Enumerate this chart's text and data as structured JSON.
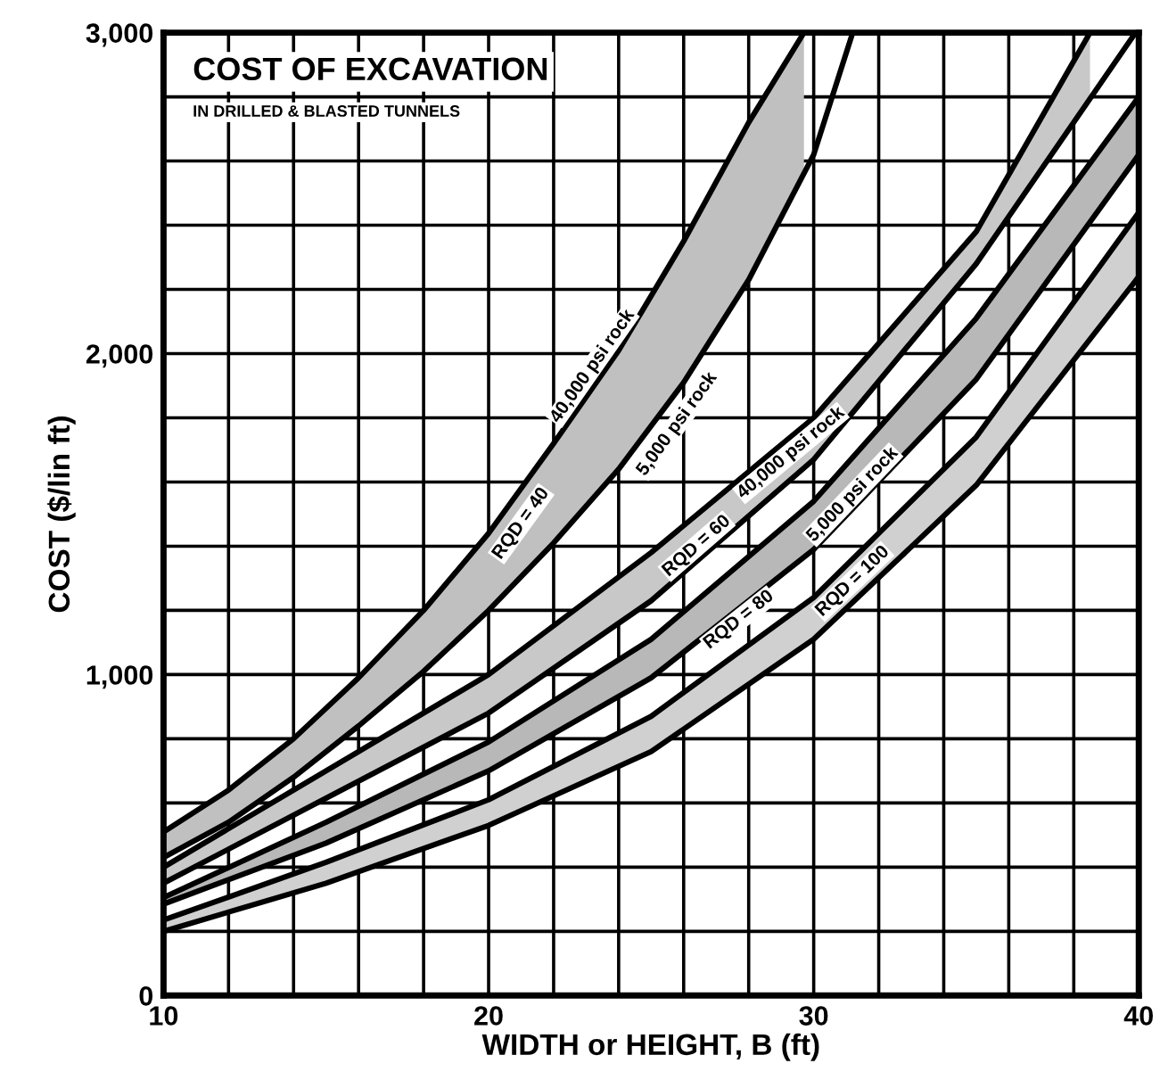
{
  "chart_data": {
    "type": "line",
    "title": "COST OF EXCAVATION",
    "subtitle": "IN DRILLED & BLASTED TUNNELS",
    "xlabel": "WIDTH or HEIGHT, B (ft)",
    "ylabel": "COST ($/lin ft)",
    "xlim": [
      10,
      40
    ],
    "ylim": [
      0,
      3000
    ],
    "xticks": [
      10,
      {
        "value": 12,
        "label": null
      },
      {
        "value": 14,
        "label": null
      },
      {
        "value": 16,
        "label": null
      },
      {
        "value": 18,
        "label": null
      },
      20,
      {
        "value": 22,
        "label": null
      },
      {
        "value": 24,
        "label": null
      },
      {
        "value": 26,
        "label": null
      },
      {
        "value": 28,
        "label": null
      },
      30,
      {
        "value": 32,
        "label": null
      },
      {
        "value": 34,
        "label": null
      },
      {
        "value": 36,
        "label": null
      },
      {
        "value": 38,
        "label": null
      },
      40
    ],
    "yticks": [
      0,
      {
        "value": 200,
        "label": null
      },
      {
        "value": 400,
        "label": null
      },
      {
        "value": 600,
        "label": null
      },
      {
        "value": 800,
        "label": null
      },
      {
        "value": 1000,
        "label": "1,000"
      },
      {
        "value": 1200,
        "label": null
      },
      {
        "value": 1400,
        "label": null
      },
      {
        "value": 1600,
        "label": null
      },
      {
        "value": 1800,
        "label": null
      },
      {
        "value": 2000,
        "label": "2,000"
      },
      {
        "value": 2200,
        "label": null
      },
      {
        "value": 2400,
        "label": null
      },
      {
        "value": 2600,
        "label": null
      },
      {
        "value": 2800,
        "label": null
      },
      {
        "value": 3000,
        "label": "3,000"
      }
    ],
    "grid": true,
    "marker": "none",
    "line_style": "solid",
    "series": [
      {
        "color": "#000000",
        "x": [
          10,
          12,
          14,
          16,
          18,
          20,
          22,
          24,
          26,
          28,
          29.7
        ],
        "values": [
          510,
          640,
          800,
          990,
          1200,
          1440,
          1720,
          2010,
          2350,
          2720,
          3000
        ],
        "lower": [
          430,
          540,
          680,
          840,
          1010,
          1200,
          1410,
          1640,
          1910,
          2230,
          2560
        ],
        "upper": [
          510,
          640,
          800,
          990,
          1200,
          1440,
          1720,
          2010,
          2350,
          2720,
          3000
        ]
      },
      {
        "color": "#000000",
        "x": [
          10,
          15,
          20,
          25,
          30,
          35,
          38.5
        ],
        "values": [
          400,
          700,
          1000,
          1380,
          1800,
          2380,
          3000
        ],
        "lower": [
          350,
          615,
          880,
          1230,
          1670,
          2280,
          2790
        ],
        "upper": [
          400,
          700,
          1000,
          1380,
          1800,
          2380,
          3000
        ]
      },
      {
        "color": "#000000",
        "x": [
          10,
          15,
          20,
          25,
          30,
          35,
          40
        ],
        "values": [
          305,
          540,
          790,
          1110,
          1540,
          2110,
          2800
        ],
        "lower": [
          285,
          475,
          700,
          990,
          1390,
          1920,
          2620
        ],
        "upper": [
          305,
          540,
          790,
          1110,
          1540,
          2110,
          2800
        ]
      },
      {
        "color": "#000000",
        "x": [
          10,
          15,
          20,
          25,
          30,
          35,
          40
        ],
        "values": [
          235,
          415,
          610,
          870,
          1240,
          1740,
          2440
        ],
        "lower": [
          200,
          350,
          530,
          760,
          1110,
          1590,
          2240
        ],
        "upper": [
          235,
          415,
          610,
          870,
          1240,
          1740,
          2440
        ]
      },
      {
        "color": "#000000",
        "x": [
          10,
          12,
          14,
          16,
          18,
          20,
          22,
          24,
          26,
          28,
          30,
          31.2
        ],
        "values": [
          430,
          540,
          680,
          840,
          1010,
          1200,
          1410,
          1640,
          1910,
          2230,
          2620,
          3000
        ]
      },
      {
        "color": "#000000",
        "x": [
          10,
          15,
          20,
          25,
          30,
          35,
          39.9
        ],
        "values": [
          350,
          615,
          880,
          1230,
          1670,
          2280,
          3000
        ]
      },
      {
        "color": "#000000",
        "x": [
          10,
          15,
          20,
          25,
          30,
          35,
          40
        ],
        "values": [
          285,
          475,
          700,
          990,
          1390,
          1920,
          2620
        ]
      },
      {
        "color": "#000000",
        "x": [
          10,
          15,
          20,
          25,
          30,
          35,
          40
        ],
        "values": [
          200,
          350,
          530,
          760,
          1110,
          1590,
          2240
        ]
      }
    ],
    "annotations": [
      "RQD = 40",
      "40,000 psi rock",
      "5,000 psi rock",
      "RQD = 60",
      "40,000 psi rock",
      "5,000 psi rock",
      "RQD = 80",
      "RQD = 100"
    ]
  }
}
